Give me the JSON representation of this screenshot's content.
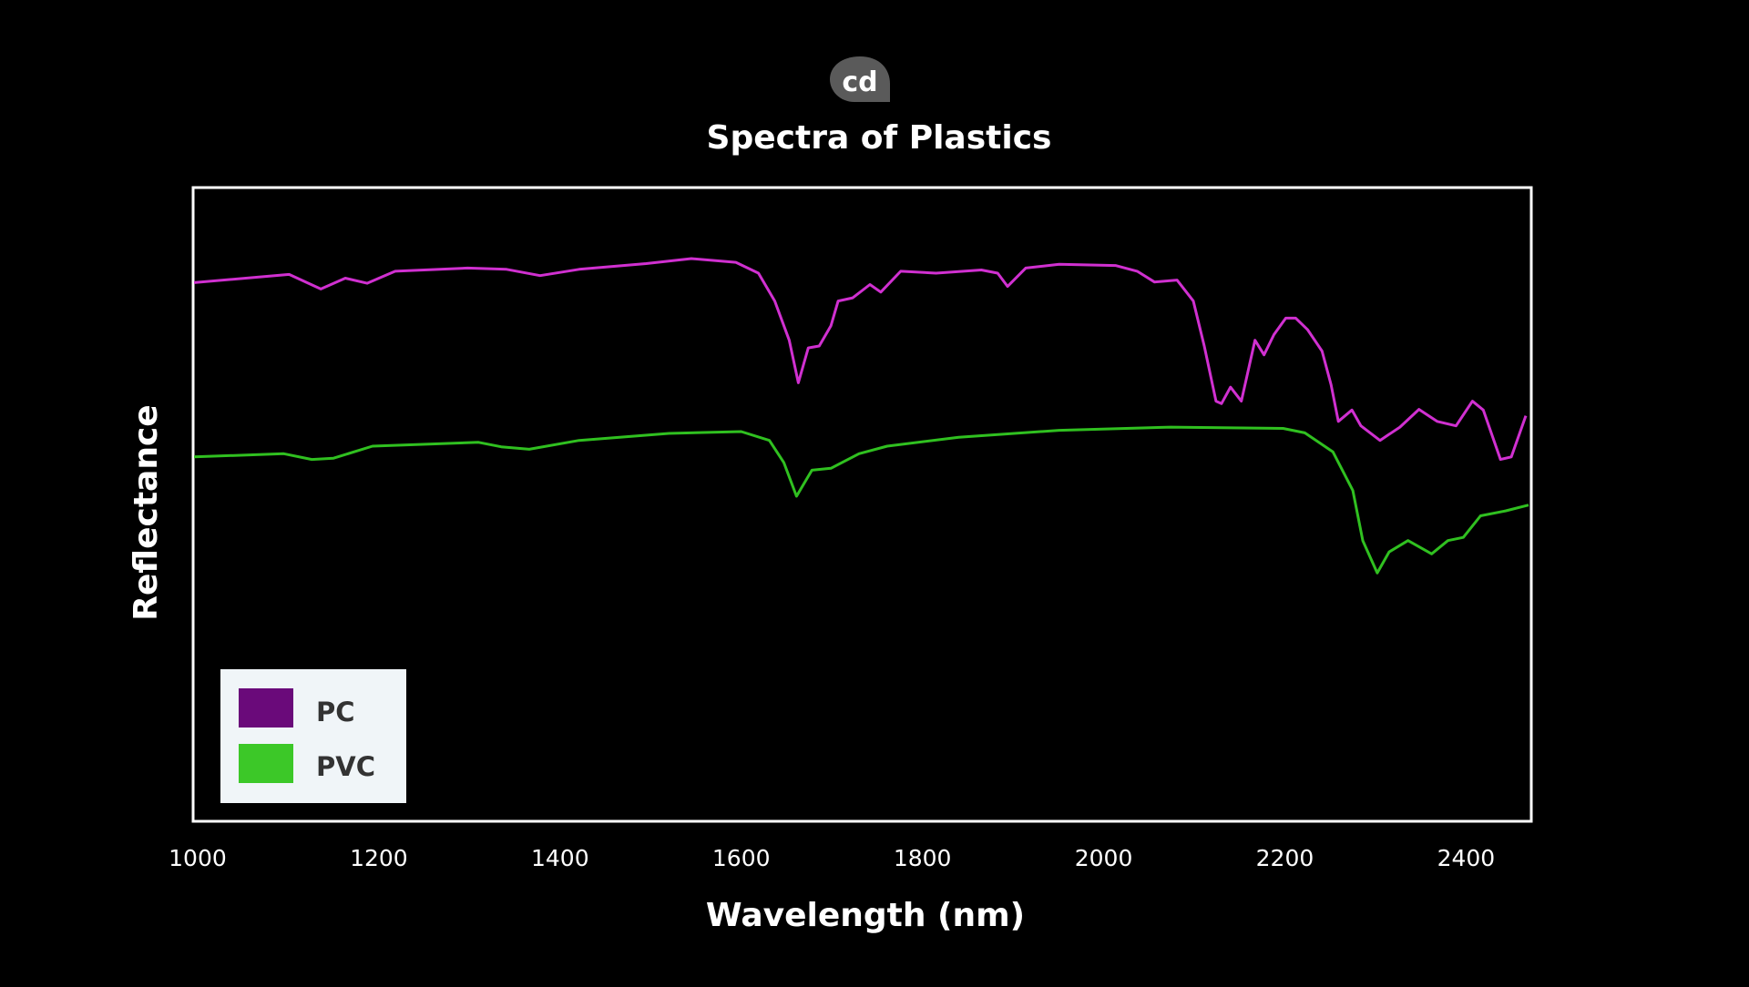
{
  "logo": {
    "icon": "cd-logo-icon",
    "color": "#5a5a5a"
  },
  "chart_data": {
    "type": "line",
    "title": "Spectra of Plastics",
    "xlabel": "Wavelength (nm)",
    "ylabel": "Reflectance",
    "xlim": [
      995,
      2472
    ],
    "ylim": [
      0,
      1
    ],
    "xticks": [
      1000,
      1200,
      1400,
      1600,
      1800,
      2000,
      2200,
      2400
    ],
    "yticks": [],
    "grid": false,
    "legend_position": "bottom-left",
    "legend_background": "#f0f5f8",
    "series": [
      {
        "name": "PC",
        "line_color": "#d030d0",
        "legend_color": "#6a0a7a",
        "points": [
          [
            996,
            0.85
          ],
          [
            1101,
            0.863
          ],
          [
            1136,
            0.84
          ],
          [
            1163,
            0.857
          ],
          [
            1187,
            0.849
          ],
          [
            1218,
            0.868
          ],
          [
            1298,
            0.873
          ],
          [
            1341,
            0.871
          ],
          [
            1378,
            0.861
          ],
          [
            1421,
            0.871
          ],
          [
            1495,
            0.88
          ],
          [
            1545,
            0.888
          ],
          [
            1594,
            0.882
          ],
          [
            1619,
            0.865
          ],
          [
            1637,
            0.821
          ],
          [
            1653,
            0.759
          ],
          [
            1663,
            0.692
          ],
          [
            1674,
            0.747
          ],
          [
            1686,
            0.75
          ],
          [
            1699,
            0.782
          ],
          [
            1707,
            0.821
          ],
          [
            1723,
            0.826
          ],
          [
            1742,
            0.847
          ],
          [
            1754,
            0.835
          ],
          [
            1776,
            0.868
          ],
          [
            1815,
            0.865
          ],
          [
            1865,
            0.87
          ],
          [
            1883,
            0.865
          ],
          [
            1894,
            0.844
          ],
          [
            1914,
            0.873
          ],
          [
            1951,
            0.879
          ],
          [
            2013,
            0.877
          ],
          [
            2037,
            0.868
          ],
          [
            2056,
            0.851
          ],
          [
            2081,
            0.854
          ],
          [
            2099,
            0.821
          ],
          [
            2111,
            0.75
          ],
          [
            2124,
            0.663
          ],
          [
            2130,
            0.659
          ],
          [
            2140,
            0.685
          ],
          [
            2152,
            0.663
          ],
          [
            2167,
            0.759
          ],
          [
            2177,
            0.736
          ],
          [
            2188,
            0.768
          ],
          [
            2201,
            0.794
          ],
          [
            2212,
            0.794
          ],
          [
            2225,
            0.776
          ],
          [
            2241,
            0.742
          ],
          [
            2251,
            0.689
          ],
          [
            2259,
            0.631
          ],
          [
            2274,
            0.649
          ],
          [
            2284,
            0.624
          ],
          [
            2305,
            0.601
          ],
          [
            2327,
            0.622
          ],
          [
            2348,
            0.65
          ],
          [
            2368,
            0.631
          ],
          [
            2389,
            0.624
          ],
          [
            2407,
            0.663
          ],
          [
            2419,
            0.649
          ],
          [
            2438,
            0.571
          ],
          [
            2450,
            0.575
          ],
          [
            2466,
            0.64
          ]
        ]
      },
      {
        "name": "PVC",
        "line_color": "#30c020",
        "legend_color": "#3cc828",
        "points": [
          [
            996,
            0.575
          ],
          [
            1095,
            0.58
          ],
          [
            1126,
            0.571
          ],
          [
            1150,
            0.573
          ],
          [
            1193,
            0.592
          ],
          [
            1310,
            0.598
          ],
          [
            1335,
            0.591
          ],
          [
            1366,
            0.587
          ],
          [
            1421,
            0.601
          ],
          [
            1520,
            0.612
          ],
          [
            1600,
            0.615
          ],
          [
            1631,
            0.601
          ],
          [
            1647,
            0.566
          ],
          [
            1661,
            0.513
          ],
          [
            1678,
            0.554
          ],
          [
            1699,
            0.557
          ],
          [
            1730,
            0.58
          ],
          [
            1761,
            0.592
          ],
          [
            1840,
            0.606
          ],
          [
            1951,
            0.617
          ],
          [
            2074,
            0.622
          ],
          [
            2198,
            0.62
          ],
          [
            2222,
            0.613
          ],
          [
            2253,
            0.583
          ],
          [
            2275,
            0.522
          ],
          [
            2286,
            0.443
          ],
          [
            2302,
            0.392
          ],
          [
            2315,
            0.425
          ],
          [
            2336,
            0.443
          ],
          [
            2362,
            0.422
          ],
          [
            2380,
            0.443
          ],
          [
            2397,
            0.448
          ],
          [
            2416,
            0.482
          ],
          [
            2444,
            0.49
          ],
          [
            2469,
            0.499
          ]
        ]
      }
    ]
  }
}
